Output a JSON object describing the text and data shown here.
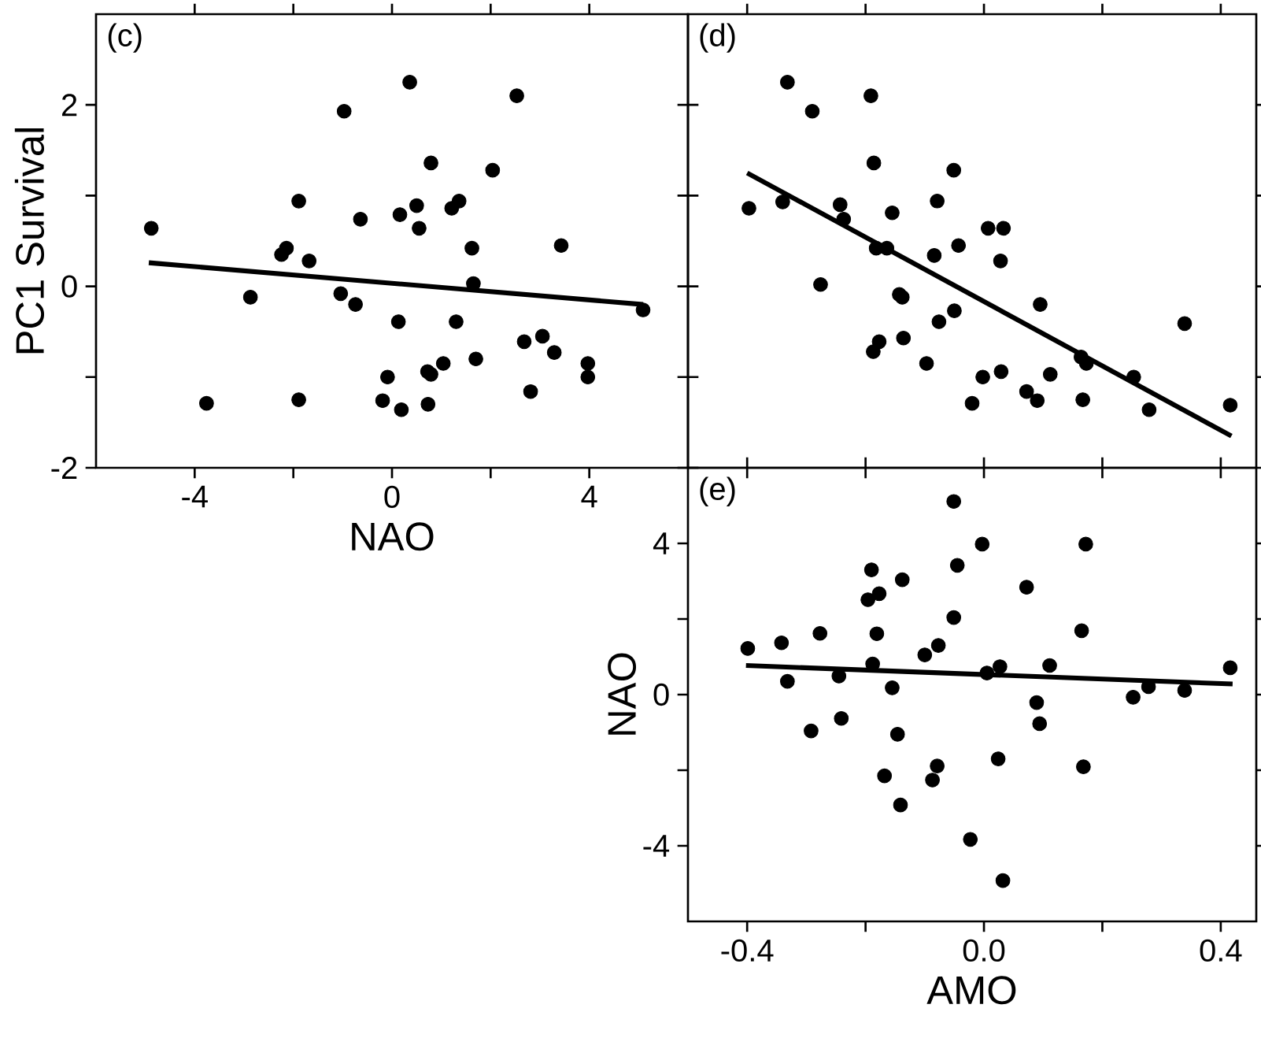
{
  "chart_data": [
    {
      "type": "scatter",
      "annotations": [
        "(c)"
      ],
      "xlabel": "NAO",
      "ylabel": "PC1 Survival",
      "xlim": [
        -6,
        6
      ],
      "ylim": [
        -2,
        3
      ],
      "xticks": [
        -4,
        {
          "value": -2,
          "label": null
        },
        0,
        {
          "value": 2,
          "label": null
        },
        4
      ],
      "yticks": [
        -2,
        {
          "value": -1,
          "label": null
        },
        0,
        {
          "value": 1,
          "label": null
        },
        2
      ],
      "series": [
        {
          "color": "#000000",
          "marker": "circle",
          "x": [
            -4.88,
            -3.76,
            -2.87,
            -2.24,
            -2.14,
            -1.89,
            -1.89,
            -1.68,
            -1.04,
            -0.97,
            -0.74,
            -0.64,
            -0.19,
            -0.09,
            0.13,
            0.16,
            0.19,
            0.36,
            0.5,
            0.55,
            0.72,
            0.73,
            0.79,
            0.79,
            1.04,
            1.21,
            1.3,
            1.36,
            1.62,
            1.65,
            1.7,
            2.04,
            2.53,
            2.68,
            2.81,
            3.05,
            3.29,
            3.43,
            3.97,
            3.97,
            5.09
          ],
          "values": [
            0.64,
            -1.29,
            -0.12,
            0.35,
            0.42,
            0.94,
            -1.25,
            0.28,
            -0.08,
            1.93,
            -0.2,
            0.74,
            -1.26,
            -1.0,
            -0.39,
            0.79,
            -1.36,
            2.25,
            0.89,
            0.64,
            -0.94,
            -1.3,
            1.36,
            -0.97,
            -0.85,
            0.86,
            -0.39,
            0.94,
            0.42,
            0.03,
            -0.8,
            1.28,
            2.1,
            -0.61,
            -1.16,
            -0.55,
            -0.73,
            0.45,
            -0.85,
            -1.0,
            -0.26
          ]
        },
        {
          "type": "line",
          "color": "#000000",
          "marker": "none",
          "line_style": "solid",
          "x": [
            -4.93,
            5.09
          ],
          "values": [
            0.26,
            -0.2
          ]
        }
      ]
    },
    {
      "type": "scatter",
      "annotations": [
        "(d)"
      ],
      "tick_labels": false,
      "xlim": [
        -0.5,
        0.46
      ],
      "ylim": [
        -2,
        3
      ],
      "xticks": [
        -0.4,
        -0.2,
        0,
        0.2,
        0.4
      ],
      "yticks": [
        -2,
        -1,
        0,
        1,
        2
      ],
      "series": [
        {
          "color": "#000000",
          "marker": "circle",
          "x": [
            -0.397,
            -0.34,
            -0.332,
            -0.29,
            -0.276,
            -0.243,
            -0.237,
            -0.191,
            -0.187,
            -0.186,
            -0.182,
            -0.177,
            -0.164,
            -0.155,
            -0.143,
            -0.138,
            -0.136,
            -0.097,
            -0.084,
            -0.079,
            -0.076,
            -0.051,
            -0.05,
            -0.043,
            -0.02,
            -0.002,
            0.007,
            0.028,
            0.029,
            0.033,
            0.072,
            0.09,
            0.095,
            0.112,
            0.164,
            0.167,
            0.173,
            0.253,
            0.279,
            0.339,
            0.416
          ],
          "values": [
            0.86,
            0.93,
            2.25,
            1.93,
            0.02,
            0.9,
            0.74,
            2.1,
            -0.72,
            1.36,
            0.42,
            -0.61,
            0.42,
            0.81,
            -0.09,
            -0.12,
            -0.57,
            -0.85,
            0.34,
            0.94,
            -0.39,
            1.28,
            -0.27,
            0.45,
            -1.29,
            -1.0,
            0.64,
            0.28,
            -0.94,
            0.64,
            -1.16,
            -1.26,
            -0.2,
            -0.97,
            -0.78,
            -1.25,
            -0.85,
            -1.0,
            -1.36,
            -0.41,
            -1.31
          ]
        },
        {
          "type": "line",
          "color": "#000000",
          "marker": "none",
          "line_style": "solid",
          "x": [
            -0.4,
            0.418
          ],
          "values": [
            1.25,
            -1.65
          ]
        }
      ]
    },
    {
      "type": "scatter",
      "annotations": [
        "(e)"
      ],
      "xlabel": "AMO",
      "ylabel": "NAO",
      "xlim": [
        -0.5,
        0.46
      ],
      "ylim": [
        -6,
        6
      ],
      "xticks": [
        -0.4,
        {
          "value": -0.2,
          "label": null
        },
        {
          "value": 0,
          "label": "0.0"
        },
        {
          "value": 0.2,
          "label": null
        },
        0.4
      ],
      "yticks": [
        -4,
        {
          "value": -2,
          "label": null
        },
        0,
        {
          "value": 2,
          "label": null
        },
        4
      ],
      "series": [
        {
          "color": "#000000",
          "marker": "circle",
          "x": [
            -0.399,
            -0.342,
            -0.332,
            -0.292,
            -0.277,
            -0.245,
            -0.241,
            -0.196,
            -0.19,
            -0.188,
            -0.181,
            -0.177,
            -0.168,
            -0.155,
            -0.146,
            -0.141,
            -0.138,
            -0.1,
            -0.087,
            -0.079,
            -0.077,
            -0.051,
            -0.051,
            -0.045,
            -0.023,
            -0.003,
            0.005,
            0.027,
            0.024,
            0.032,
            0.072,
            0.089,
            0.094,
            0.111,
            0.165,
            0.168,
            0.172,
            0.252,
            0.278,
            0.339,
            0.416
          ],
          "values": [
            1.22,
            1.37,
            0.35,
            -0.96,
            1.62,
            0.49,
            -0.63,
            2.51,
            3.3,
            0.81,
            1.61,
            2.67,
            -2.15,
            0.18,
            -1.05,
            -2.92,
            3.04,
            1.05,
            -2.26,
            -1.89,
            1.3,
            2.04,
            5.11,
            3.42,
            -3.83,
            3.98,
            0.57,
            0.74,
            -1.7,
            -4.92,
            2.84,
            -0.21,
            -0.77,
            0.77,
            1.69,
            -1.91,
            3.98,
            -0.07,
            0.21,
            0.11,
            0.71
          ]
        },
        {
          "type": "line",
          "color": "#000000",
          "marker": "none",
          "line_style": "solid",
          "x": [
            -0.402,
            0.42
          ],
          "values": [
            0.77,
            0.28
          ]
        }
      ]
    }
  ]
}
